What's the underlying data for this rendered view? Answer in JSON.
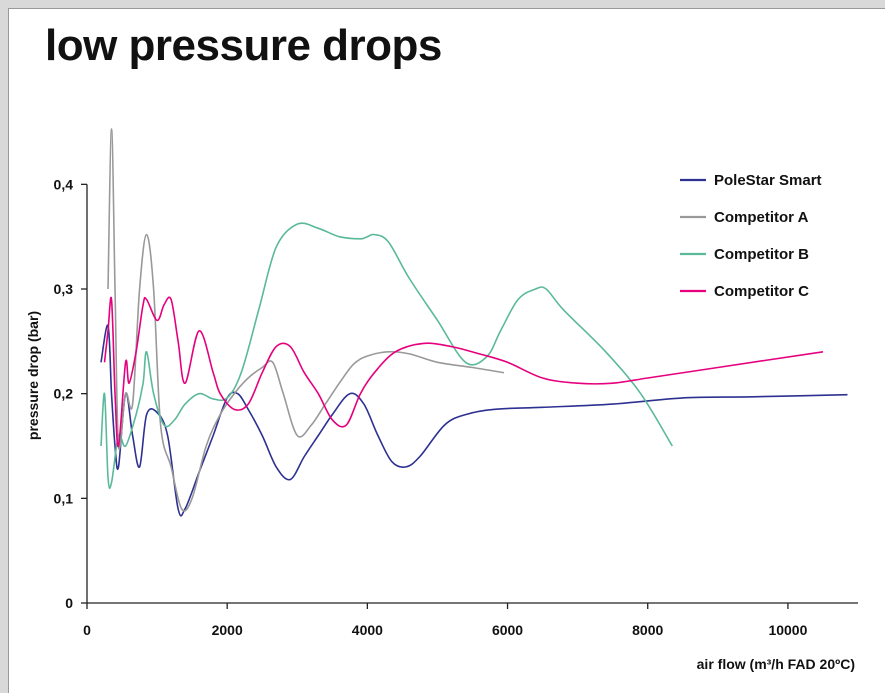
{
  "chart_data": {
    "type": "line",
    "title": "low pressure drops",
    "xlabel": "air flow (m³/h FAD 20ºC)",
    "ylabel": "pressure drop (bar)",
    "xlim": [
      0,
      11000
    ],
    "ylim": [
      0,
      0.45
    ],
    "x_ticks": [
      0,
      2000,
      4000,
      6000,
      8000,
      10000
    ],
    "x_tick_labels": [
      "0",
      "2000",
      "4000",
      "6000",
      "8000",
      "10000"
    ],
    "y_ticks": [
      0,
      0.1,
      0.2,
      0.3,
      0.4
    ],
    "y_tick_labels": [
      "0",
      "0,1",
      "0,2",
      "0,3",
      "0,4"
    ],
    "legend_position": "top-right",
    "grid": false,
    "series": [
      {
        "name": "PoleStar Smart",
        "color": "#2e3192",
        "x": [
          200,
          300,
          350,
          400,
          450,
          550,
          650,
          750,
          850,
          1000,
          1150,
          1300,
          1400,
          1600,
          1800,
          2000,
          2150,
          2300,
          2500,
          2700,
          2900,
          3100,
          3300,
          3500,
          3750,
          3950,
          4150,
          4350,
          4550,
          4750,
          5100,
          5400,
          5800,
          6500,
          7500,
          8500,
          9500,
          10850
        ],
        "y": [
          0.23,
          0.265,
          0.2,
          0.15,
          0.13,
          0.2,
          0.16,
          0.13,
          0.18,
          0.182,
          0.16,
          0.09,
          0.09,
          0.125,
          0.16,
          0.196,
          0.2,
          0.185,
          0.16,
          0.13,
          0.118,
          0.14,
          0.16,
          0.18,
          0.2,
          0.19,
          0.16,
          0.135,
          0.13,
          0.14,
          0.17,
          0.18,
          0.185,
          0.187,
          0.19,
          0.196,
          0.197,
          0.199
        ]
      },
      {
        "name": "Competitor A",
        "color": "#999999",
        "x": [
          300,
          350,
          400,
          450,
          550,
          650,
          750,
          850,
          950,
          1050,
          1200,
          1350,
          1500,
          1700,
          1900,
          2100,
          2300,
          2500,
          2650,
          2800,
          3000,
          3200,
          3400,
          3600,
          3800,
          4000,
          4300,
          4600,
          5000,
          5500,
          5950
        ],
        "y": [
          0.3,
          0.453,
          0.3,
          0.15,
          0.2,
          0.19,
          0.3,
          0.352,
          0.3,
          0.17,
          0.13,
          0.09,
          0.1,
          0.15,
          0.18,
          0.2,
          0.215,
          0.225,
          0.23,
          0.2,
          0.16,
          0.17,
          0.19,
          0.21,
          0.228,
          0.236,
          0.24,
          0.238,
          0.23,
          0.225,
          0.22
        ]
      },
      {
        "name": "Competitor B",
        "color": "#5bb99b",
        "x": [
          200,
          250,
          300,
          350,
          450,
          550,
          700,
          800,
          850,
          950,
          1100,
          1250,
          1400,
          1600,
          1800,
          2000,
          2200,
          2450,
          2700,
          3000,
          3300,
          3600,
          3900,
          4000,
          4100,
          4300,
          4600,
          5000,
          5400,
          5700,
          5900,
          6150,
          6400,
          6550,
          6800,
          7400,
          7900,
          8350
        ],
        "y": [
          0.15,
          0.2,
          0.12,
          0.115,
          0.16,
          0.15,
          0.18,
          0.21,
          0.24,
          0.2,
          0.17,
          0.175,
          0.19,
          0.2,
          0.195,
          0.196,
          0.22,
          0.28,
          0.34,
          0.362,
          0.358,
          0.35,
          0.348,
          0.35,
          0.352,
          0.345,
          0.31,
          0.27,
          0.23,
          0.235,
          0.26,
          0.29,
          0.3,
          0.3,
          0.28,
          0.24,
          0.2,
          0.15
        ]
      },
      {
        "name": "Competitor C",
        "color": "#e6007e",
        "x": [
          250,
          300,
          350,
          400,
          450,
          550,
          600,
          700,
          800,
          850,
          1000,
          1100,
          1200,
          1300,
          1400,
          1600,
          1800,
          1900,
          2100,
          2300,
          2500,
          2700,
          2900,
          3100,
          3300,
          3500,
          3700,
          3900,
          4100,
          4400,
          4800,
          5200,
          5600,
          6000,
          6500,
          7000,
          7500,
          8000,
          9000,
          10500
        ],
        "y": [
          0.23,
          0.26,
          0.29,
          0.2,
          0.15,
          0.23,
          0.21,
          0.24,
          0.285,
          0.29,
          0.27,
          0.285,
          0.29,
          0.25,
          0.21,
          0.26,
          0.22,
          0.2,
          0.185,
          0.19,
          0.22,
          0.245,
          0.245,
          0.22,
          0.2,
          0.175,
          0.17,
          0.2,
          0.22,
          0.24,
          0.248,
          0.245,
          0.238,
          0.23,
          0.215,
          0.21,
          0.21,
          0.215,
          0.225,
          0.24
        ]
      }
    ]
  }
}
